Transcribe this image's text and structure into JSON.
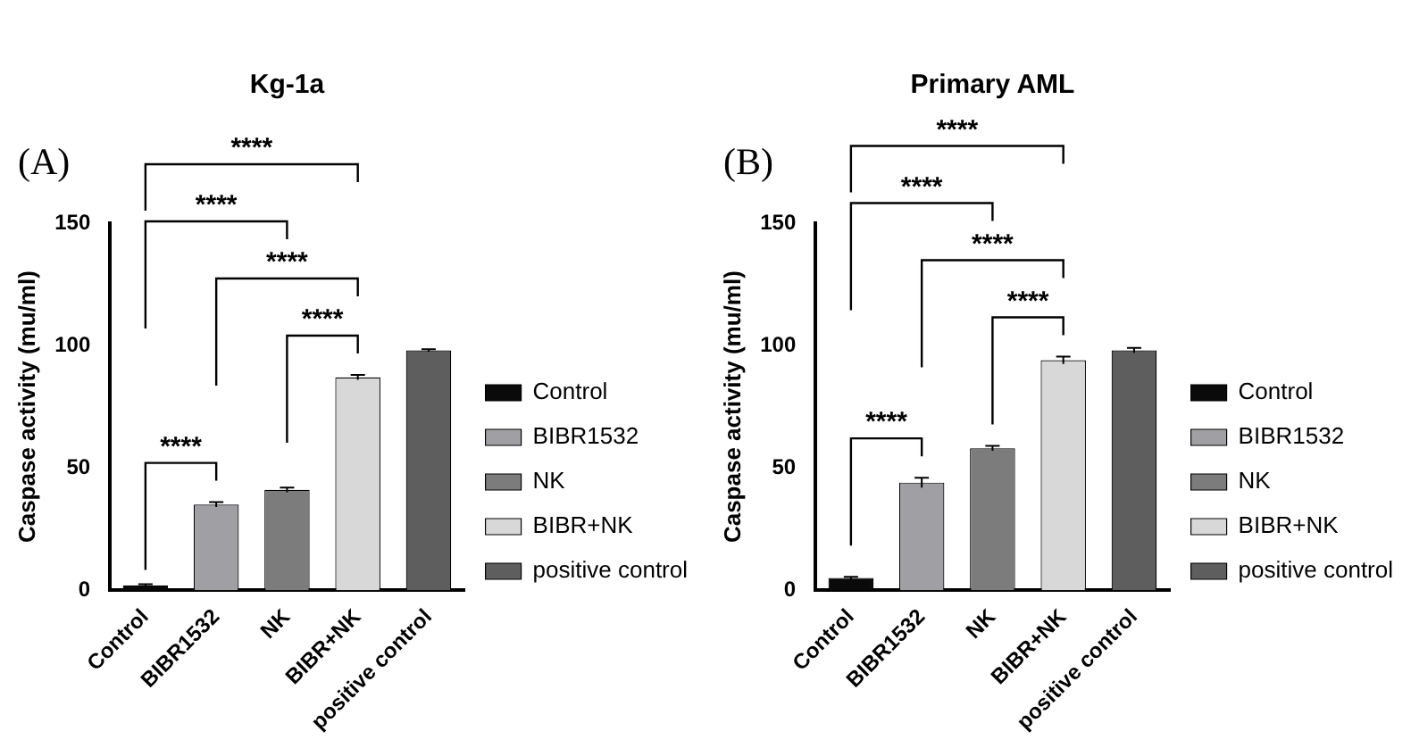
{
  "chart_data": [
    {
      "type": "bar",
      "title": "Kg-1a",
      "ylabel": "Caspase activity (mu/ml)",
      "categories": [
        "Control",
        "BIBR1532",
        "NK",
        "BIBR+NK",
        "positive control"
      ],
      "series": [
        {
          "name": "Control",
          "color": "#0a0a0a",
          "values": [
            2,
            null,
            null,
            null,
            null
          ],
          "errors": [
            0.5,
            null,
            null,
            null,
            null
          ]
        },
        {
          "name": "BIBR1532",
          "color": "#a0a0a4",
          "values": [
            null,
            35,
            null,
            null,
            null
          ],
          "errors": [
            null,
            1,
            null,
            null,
            null
          ]
        },
        {
          "name": "NK",
          "color": "#7c7c7c",
          "values": [
            null,
            null,
            41,
            null,
            null
          ],
          "errors": [
            null,
            null,
            1,
            null,
            null
          ]
        },
        {
          "name": "BIBR+NK",
          "color": "#d8d8d8",
          "values": [
            null,
            null,
            null,
            87,
            null
          ],
          "errors": [
            null,
            null,
            null,
            1,
            null
          ]
        },
        {
          "name": "positive control",
          "color": "#5e5e5e",
          "values": [
            null,
            null,
            null,
            null,
            98
          ],
          "errors": [
            null,
            null,
            null,
            null,
            0.5
          ]
        }
      ],
      "ylim": [
        0,
        150
      ],
      "yticks": [
        0,
        50,
        100,
        150
      ],
      "grid": false,
      "legend": "right",
      "annotations": [
        "(A)",
        "****",
        "****",
        "****",
        "****",
        "****"
      ]
    },
    {
      "type": "bar",
      "title": "Primary AML",
      "ylabel": "Caspase activity (mu/ml)",
      "categories": [
        "Control",
        "BIBR1532",
        "NK",
        "BIBR+NK",
        "positive control"
      ],
      "series": [
        {
          "name": "Control",
          "color": "#0a0a0a",
          "values": [
            5,
            null,
            null,
            null,
            null
          ],
          "errors": [
            0.5,
            null,
            null,
            null,
            null
          ]
        },
        {
          "name": "BIBR1532",
          "color": "#a0a0a4",
          "values": [
            null,
            44,
            null,
            null,
            null
          ],
          "errors": [
            null,
            2,
            null,
            null,
            null
          ]
        },
        {
          "name": "NK",
          "color": "#7c7c7c",
          "values": [
            null,
            null,
            58,
            null,
            null
          ],
          "errors": [
            null,
            null,
            1,
            null,
            null
          ]
        },
        {
          "name": "BIBR+NK",
          "color": "#d8d8d8",
          "values": [
            null,
            null,
            null,
            94,
            null
          ],
          "errors": [
            null,
            null,
            null,
            1.5,
            null
          ]
        },
        {
          "name": "positive control",
          "color": "#5e5e5e",
          "values": [
            null,
            null,
            null,
            null,
            98
          ],
          "errors": [
            null,
            null,
            null,
            null,
            1
          ]
        }
      ],
      "ylim": [
        0,
        150
      ],
      "yticks": [
        0,
        50,
        100,
        150
      ],
      "grid": false,
      "legend": "right",
      "annotations": [
        "(B)",
        "****",
        "****",
        "****",
        "****",
        "****"
      ]
    }
  ]
}
